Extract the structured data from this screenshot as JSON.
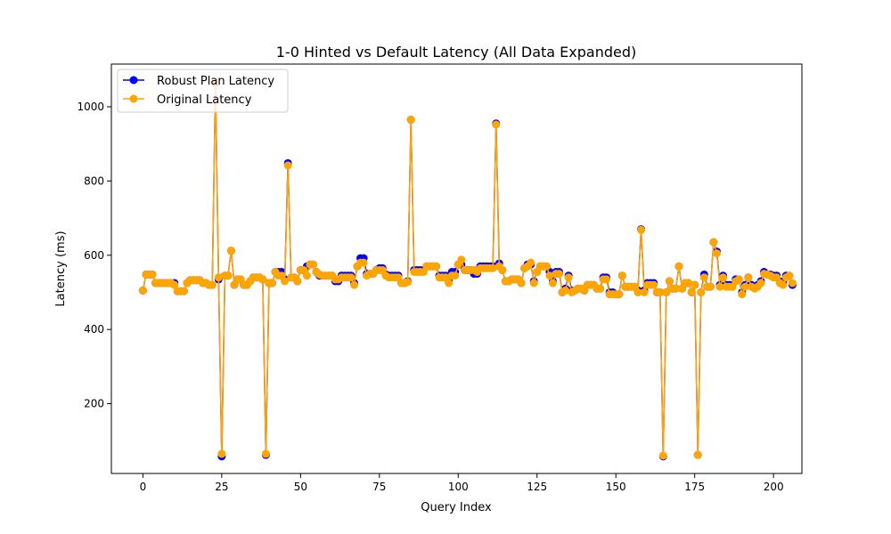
{
  "chart_data": {
    "type": "line",
    "title": "1-0 Hinted vs Default Latency (All Data Expanded)",
    "xlabel": "Query Index",
    "ylabel": "Latency (ms)",
    "xlim": [
      -10,
      209
    ],
    "ylim": [
      12,
      1115
    ],
    "xticks": [
      0,
      25,
      50,
      75,
      100,
      125,
      150,
      175,
      200
    ],
    "yticks": [
      200,
      400,
      600,
      800,
      1000
    ],
    "grid": false,
    "legend_position": "top-left",
    "series": [
      {
        "name": "Robust Plan Latency",
        "color": "#0000ff",
        "marker": "circle",
        "values": [
          505,
          548,
          548,
          548,
          525,
          525,
          525,
          525,
          525,
          525,
          525,
          503,
          503,
          503,
          525,
          533,
          533,
          533,
          533,
          525,
          525,
          520,
          520,
          1065,
          535,
          58,
          545,
          545,
          612,
          520,
          535,
          535,
          520,
          520,
          530,
          540,
          540,
          540,
          535,
          62,
          525,
          525,
          555,
          555,
          555,
          535,
          848,
          540,
          540,
          530,
          560,
          560,
          570,
          575,
          575,
          555,
          545,
          545,
          545,
          545,
          545,
          530,
          530,
          545,
          545,
          545,
          545,
          525,
          570,
          592,
          592,
          550,
          550,
          550,
          560,
          565,
          565,
          548,
          545,
          545,
          545,
          545,
          525,
          525,
          530,
          965,
          560,
          560,
          560,
          560,
          570,
          570,
          570,
          570,
          545,
          545,
          545,
          530,
          555,
          555,
          575,
          575,
          560,
          560,
          560,
          550,
          550,
          570,
          570,
          570,
          570,
          570,
          955,
          578,
          560,
          530,
          530,
          535,
          535,
          535,
          525,
          565,
          575,
          575,
          530,
          555,
          570,
          570,
          570,
          555,
          530,
          555,
          555,
          500,
          510,
          545,
          505,
          505,
          510,
          510,
          505,
          520,
          520,
          520,
          510,
          510,
          540,
          540,
          500,
          500,
          495,
          495,
          545,
          515,
          515,
          515,
          515,
          505,
          670,
          505,
          525,
          525,
          525,
          500,
          500,
          58,
          500,
          530,
          510,
          510,
          570,
          510,
          525,
          525,
          500,
          520,
          62,
          500,
          548,
          515,
          515,
          635,
          610,
          520,
          545,
          520,
          520,
          520,
          535,
          535,
          500,
          520,
          540,
          520,
          515,
          520,
          530,
          555,
          548,
          548,
          545,
          545,
          530,
          525,
          545,
          545,
          520
        ]
      },
      {
        "name": "Original Latency",
        "color": "#ffa500",
        "marker": "circle",
        "values": [
          505,
          548,
          548,
          548,
          525,
          525,
          525,
          525,
          525,
          525,
          520,
          503,
          503,
          503,
          525,
          533,
          533,
          533,
          533,
          525,
          525,
          520,
          520,
          1068,
          540,
          65,
          545,
          545,
          612,
          520,
          535,
          535,
          520,
          520,
          530,
          540,
          540,
          540,
          535,
          65,
          525,
          525,
          555,
          545,
          545,
          530,
          842,
          540,
          540,
          530,
          560,
          560,
          545,
          575,
          575,
          555,
          548,
          545,
          545,
          545,
          545,
          535,
          535,
          540,
          540,
          540,
          540,
          520,
          570,
          580,
          580,
          545,
          550,
          550,
          560,
          560,
          560,
          545,
          540,
          540,
          540,
          540,
          525,
          525,
          528,
          965,
          555,
          555,
          555,
          555,
          570,
          570,
          570,
          570,
          540,
          540,
          540,
          525,
          545,
          545,
          575,
          588,
          560,
          560,
          560,
          560,
          555,
          565,
          565,
          565,
          565,
          565,
          952,
          570,
          560,
          530,
          530,
          535,
          535,
          535,
          525,
          565,
          570,
          580,
          525,
          555,
          570,
          570,
          570,
          545,
          525,
          550,
          550,
          500,
          505,
          540,
          500,
          505,
          510,
          510,
          505,
          520,
          520,
          520,
          510,
          510,
          535,
          535,
          495,
          495,
          495,
          495,
          545,
          515,
          515,
          515,
          515,
          500,
          668,
          500,
          520,
          520,
          520,
          500,
          500,
          60,
          500,
          530,
          510,
          510,
          570,
          510,
          525,
          525,
          500,
          520,
          62,
          500,
          540,
          515,
          515,
          635,
          605,
          515,
          540,
          515,
          515,
          515,
          530,
          535,
          495,
          515,
          540,
          515,
          510,
          515,
          525,
          550,
          548,
          545,
          540,
          540,
          525,
          520,
          540,
          545,
          525
        ]
      }
    ]
  }
}
